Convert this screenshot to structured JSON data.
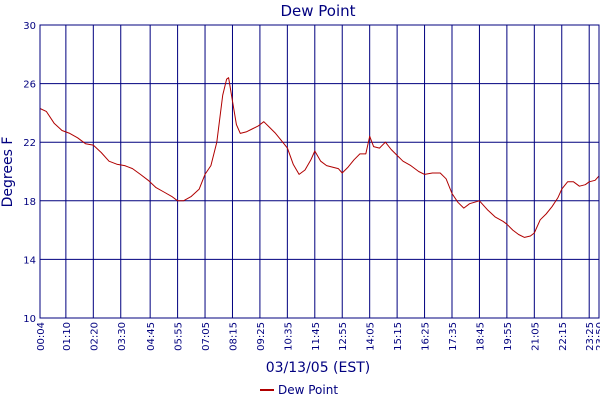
{
  "chart_data": {
    "type": "line",
    "title": "Dew Point",
    "xlabel": "03/13/05 (EST)",
    "ylabel": "Degrees F",
    "ylim": [
      10,
      30
    ],
    "yticks": [
      10,
      14,
      18,
      22,
      26,
      30
    ],
    "grid": true,
    "legend": "bottom-center",
    "colors": {
      "series": "#b00000",
      "axis": "#00007f",
      "grid": "#00007f"
    },
    "x_ticks": [
      "00:04",
      "01:10",
      "02:20",
      "03:30",
      "04:45",
      "05:55",
      "07:05",
      "08:15",
      "09:25",
      "10:35",
      "11:45",
      "12:55",
      "14:05",
      "15:15",
      "16:25",
      "17:35",
      "18:45",
      "19:55",
      "21:05",
      "22:15",
      "23:25",
      "23:50"
    ],
    "series": [
      {
        "name": "Dew Point",
        "x": [
          "00:04",
          "00:20",
          "00:40",
          "01:00",
          "01:20",
          "01:40",
          "02:00",
          "02:20",
          "02:40",
          "03:00",
          "03:20",
          "03:40",
          "04:00",
          "04:20",
          "04:40",
          "05:00",
          "05:20",
          "05:40",
          "05:55",
          "06:10",
          "06:30",
          "06:50",
          "07:05",
          "07:20",
          "07:35",
          "07:50",
          "08:00",
          "08:05",
          "08:15",
          "08:25",
          "08:35",
          "08:50",
          "09:05",
          "09:20",
          "09:35",
          "09:50",
          "10:05",
          "10:20",
          "10:35",
          "10:50",
          "11:05",
          "11:20",
          "11:35",
          "11:45",
          "12:00",
          "12:15",
          "12:30",
          "12:45",
          "12:55",
          "13:10",
          "13:25",
          "13:40",
          "13:55",
          "14:05",
          "14:15",
          "14:30",
          "14:45",
          "15:00",
          "15:15",
          "15:30",
          "15:50",
          "16:10",
          "16:25",
          "16:45",
          "17:05",
          "17:20",
          "17:35",
          "17:50",
          "18:05",
          "18:20",
          "18:45",
          "19:05",
          "19:25",
          "19:45",
          "19:55",
          "20:10",
          "20:25",
          "20:40",
          "20:55",
          "21:05",
          "21:20",
          "21:35",
          "21:50",
          "22:05",
          "22:15",
          "22:30",
          "22:45",
          "23:00",
          "23:15",
          "23:25",
          "23:40",
          "23:50"
        ],
        "values": [
          24.3,
          24.1,
          23.3,
          22.8,
          22.6,
          22.3,
          21.9,
          21.8,
          21.3,
          20.7,
          20.5,
          20.4,
          20.2,
          19.8,
          19.4,
          18.9,
          18.6,
          18.3,
          18.0,
          18.0,
          18.3,
          18.8,
          19.8,
          20.4,
          22.0,
          25.2,
          26.3,
          26.4,
          24.8,
          23.2,
          22.6,
          22.7,
          22.9,
          23.1,
          23.4,
          23.0,
          22.6,
          22.1,
          21.6,
          20.5,
          19.8,
          20.1,
          20.8,
          21.4,
          20.7,
          20.4,
          20.3,
          20.2,
          19.9,
          20.3,
          20.8,
          21.2,
          21.2,
          22.4,
          21.7,
          21.6,
          22.0,
          21.5,
          21.1,
          20.7,
          20.4,
          20.0,
          19.8,
          19.9,
          19.9,
          19.5,
          18.5,
          17.9,
          17.5,
          17.8,
          18.0,
          17.4,
          16.9,
          16.6,
          16.4,
          16.0,
          15.7,
          15.5,
          15.6,
          15.8,
          16.7,
          17.1,
          17.6,
          18.2,
          18.8,
          19.3,
          19.3,
          19.0,
          19.1,
          19.3,
          19.4,
          19.7
        ]
      }
    ]
  }
}
